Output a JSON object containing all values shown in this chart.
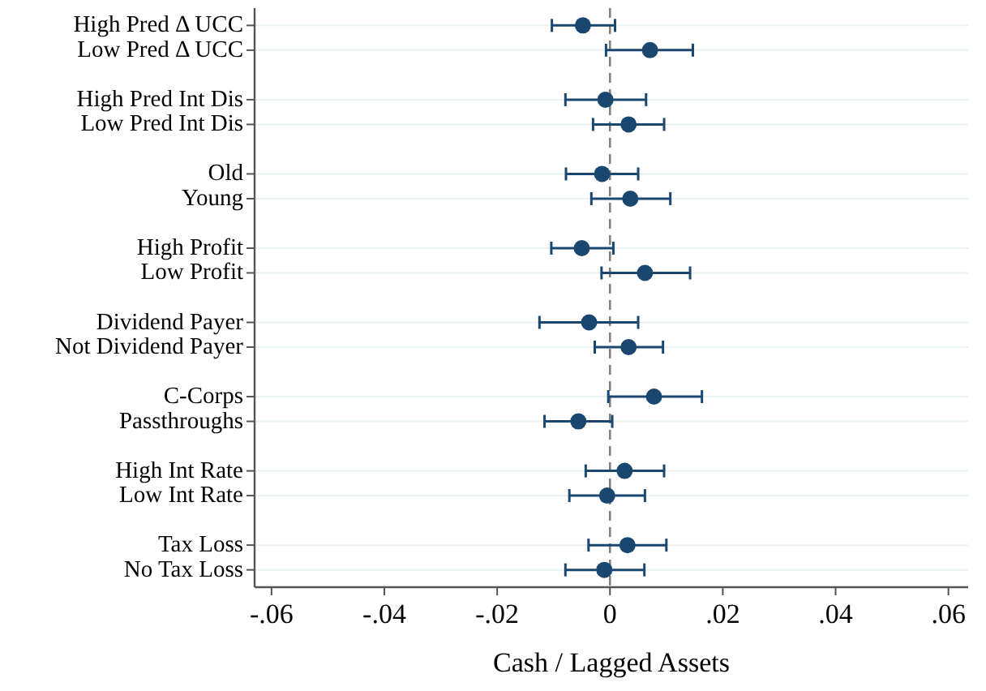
{
  "chart_data": {
    "type": "scatter",
    "orientation": "horizontal",
    "categories": [
      "High Pred Δ UCC",
      "Low Pred Δ UCC",
      null,
      "High Pred Int Dis",
      "Low Pred Int Dis",
      null,
      "Old",
      "Young",
      null,
      "High Profit",
      "Low Profit",
      null,
      "Dividend Payer",
      "Not Dividend Payer",
      null,
      "C-Corps",
      "Passthroughs",
      null,
      "High Int Rate",
      "Low Int Rate",
      null,
      "Tax Loss",
      "No Tax Loss"
    ],
    "series": [
      {
        "color": "#1a476f",
        "values": [
          -0.0048,
          0.0071,
          null,
          -0.0008,
          0.0033,
          null,
          -0.0014,
          0.0036,
          null,
          -0.005,
          0.0062,
          null,
          -0.0037,
          0.0033,
          null,
          0.0078,
          -0.0056,
          null,
          0.0026,
          -0.0005,
          null,
          0.0031,
          -0.001
        ],
        "errors": [
          [
            -0.0103,
            0.0009
          ],
          [
            -0.0007,
            0.0147
          ],
          null,
          [
            -0.0079,
            0.0064
          ],
          [
            -0.003,
            0.0096
          ],
          null,
          [
            -0.0078,
            0.005
          ],
          [
            -0.0033,
            0.0107
          ],
          null,
          [
            -0.0104,
            0.0006
          ],
          [
            -0.0015,
            0.0142
          ],
          null,
          [
            -0.0125,
            0.005
          ],
          [
            -0.0027,
            0.0094
          ],
          null,
          [
            -0.0003,
            0.0163
          ],
          [
            -0.0116,
            0.0004
          ],
          null,
          [
            -0.0043,
            0.0096
          ],
          [
            -0.0072,
            0.0062
          ],
          null,
          [
            -0.0038,
            0.01
          ],
          [
            -0.0079,
            0.0061
          ]
        ]
      }
    ],
    "xlim": [
      -0.063,
      0.0635
    ],
    "xticks": [
      {
        "value": -0.06,
        "label": "-.06"
      },
      {
        "value": -0.04,
        "label": "-.04"
      },
      {
        "value": -0.02,
        "label": "-.02"
      },
      0,
      {
        "value": 0.02,
        "label": ".02"
      },
      {
        "value": 0.04,
        "label": ".04"
      },
      {
        "value": 0.06,
        "label": ".06"
      }
    ],
    "xlabel": "Cash / Lagged Assets",
    "ref_lines": [
      {
        "axis": "x",
        "value": 0,
        "color": "#808080",
        "line_style": "dashed"
      }
    ],
    "grid": "y",
    "marker": "circle"
  }
}
